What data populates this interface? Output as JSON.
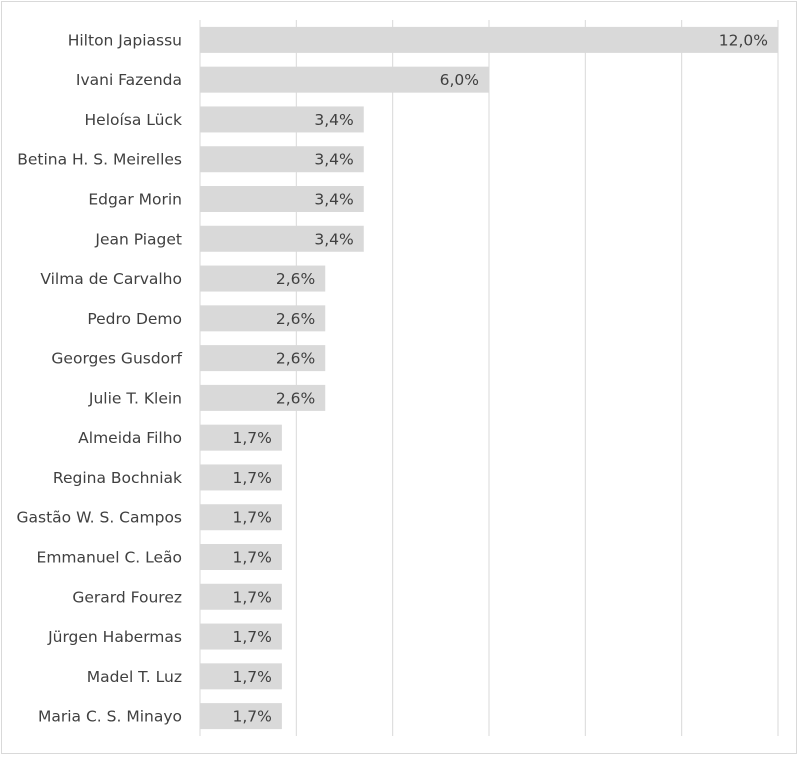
{
  "chart_data": {
    "type": "bar",
    "orientation": "horizontal",
    "categories": [
      "Hilton Japiassu",
      "Ivani Fazenda",
      "Heloísa Lück",
      "Betina H. S. Meirelles",
      "Edgar Morin",
      "Jean Piaget",
      "Vilma de Carvalho",
      "Pedro Demo",
      "Georges Gusdorf",
      "Julie T. Klein",
      "Almeida Filho",
      "Regina Bochniak",
      "Gastão W. S. Campos",
      "Emmanuel C. Leão",
      "Gerard Fourez",
      "Jürgen Habermas",
      "Madel T. Luz",
      "Maria C. S. Minayo"
    ],
    "values": [
      12.0,
      6.0,
      3.4,
      3.4,
      3.4,
      3.4,
      2.6,
      2.6,
      2.6,
      2.6,
      1.7,
      1.7,
      1.7,
      1.7,
      1.7,
      1.7,
      1.7,
      1.7
    ],
    "value_labels": [
      "12,0%",
      "6,0%",
      "3,4%",
      "3,4%",
      "3,4%",
      "3,4%",
      "2,6%",
      "2,6%",
      "2,6%",
      "2,6%",
      "1,7%",
      "1,7%",
      "1,7%",
      "1,7%",
      "1,7%",
      "1,7%",
      "1,7%",
      "1,7%"
    ],
    "xlim": [
      0,
      12
    ],
    "gridline_step": 2,
    "grid": true,
    "bar_color": "#d9d9d9",
    "grid_color": "#d9d9d9",
    "text_color": "#404040"
  }
}
